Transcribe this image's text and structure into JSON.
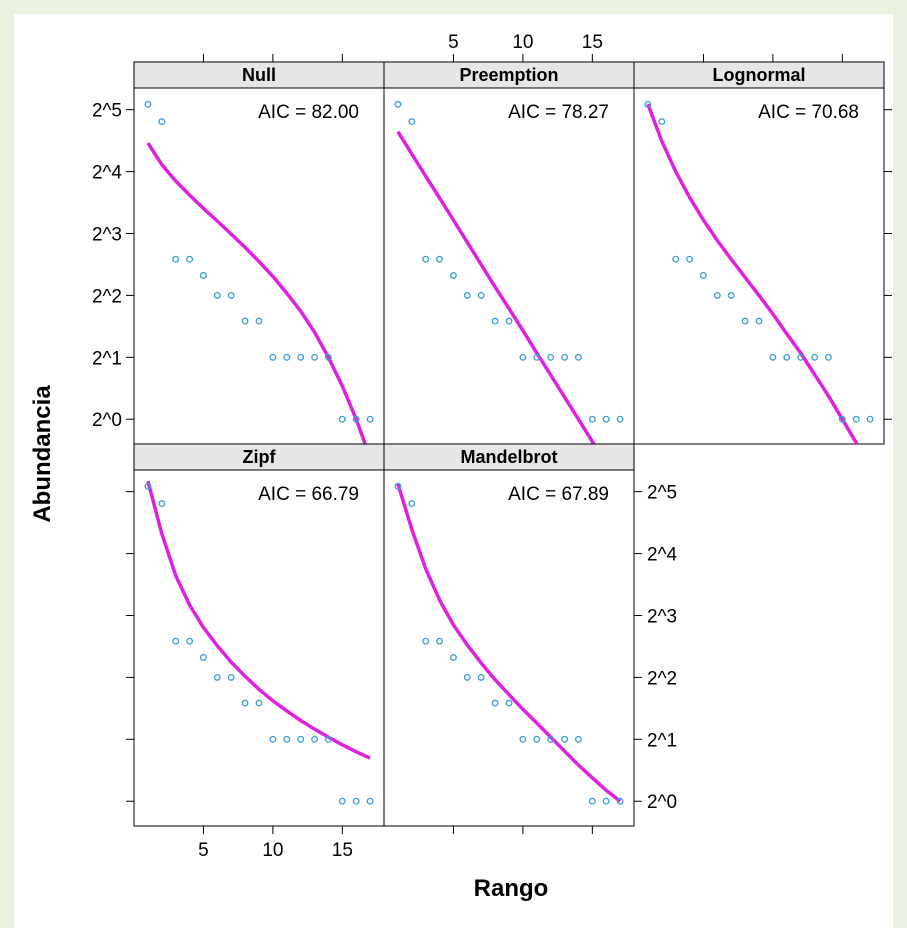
{
  "chart_data": {
    "type": "scatter",
    "layout": "lattice 3 columns x 2 rows",
    "xlabel": "Rango",
    "ylabel": "Abundancia",
    "x_ticks": [
      5,
      10,
      15
    ],
    "y_tick_labels": [
      "2^0",
      "2^1",
      "2^2",
      "2^3",
      "2^4",
      "2^5"
    ],
    "y_scale": "log2",
    "xlim": [
      0,
      18
    ],
    "ylim_log2": [
      -0.4,
      5.35
    ],
    "observed": {
      "rank": [
        1,
        2,
        3,
        4,
        5,
        6,
        7,
        8,
        9,
        10,
        11,
        12,
        13,
        14,
        15,
        16,
        17
      ],
      "abundance": [
        34,
        28,
        6,
        6,
        5,
        4,
        4,
        3,
        3,
        2,
        2,
        2,
        2,
        2,
        1,
        1,
        1
      ]
    },
    "point_color": "#3a9bd8",
    "curve_color": "#e020e0",
    "panels": [
      {
        "name": "Null",
        "aic_text": "AIC = 82.00",
        "fit": [
          22.0,
          17.3,
          14.4,
          12.3,
          10.6,
          9.2,
          7.95,
          6.85,
          5.85,
          4.95,
          4.1,
          3.35,
          2.65,
          2.0,
          1.45,
          1.0,
          0.65
        ]
      },
      {
        "name": "Preemption",
        "aic_text": "AIC = 78.27",
        "fit": [
          25.0,
          19.5,
          15.2,
          11.9,
          9.3,
          7.25,
          5.65,
          4.4,
          3.45,
          2.7,
          2.1,
          1.64,
          1.28,
          1.0,
          0.78,
          0.61,
          0.47
        ]
      },
      {
        "name": "Lognormal",
        "aic_text": "AIC = 70.68",
        "fit": [
          34.0,
          22.5,
          16.0,
          12.0,
          9.3,
          7.4,
          6.0,
          4.9,
          4.0,
          3.25,
          2.6,
          2.1,
          1.65,
          1.3,
          1.0,
          0.77,
          0.58
        ]
      },
      {
        "name": "Zipf",
        "aic_text": "AIC = 66.79",
        "fit": [
          36.0,
          20.0,
          12.5,
          9.0,
          7.0,
          5.7,
          4.75,
          4.05,
          3.5,
          3.08,
          2.75,
          2.47,
          2.24,
          2.05,
          1.88,
          1.74,
          1.62
        ]
      },
      {
        "name": "Mandelbrot",
        "aic_text": "AIC = 67.89",
        "fit": [
          35.0,
          21.0,
          13.5,
          9.5,
          7.2,
          5.75,
          4.7,
          3.9,
          3.3,
          2.8,
          2.4,
          2.05,
          1.75,
          1.5,
          1.3,
          1.13,
          1.0
        ]
      }
    ]
  }
}
